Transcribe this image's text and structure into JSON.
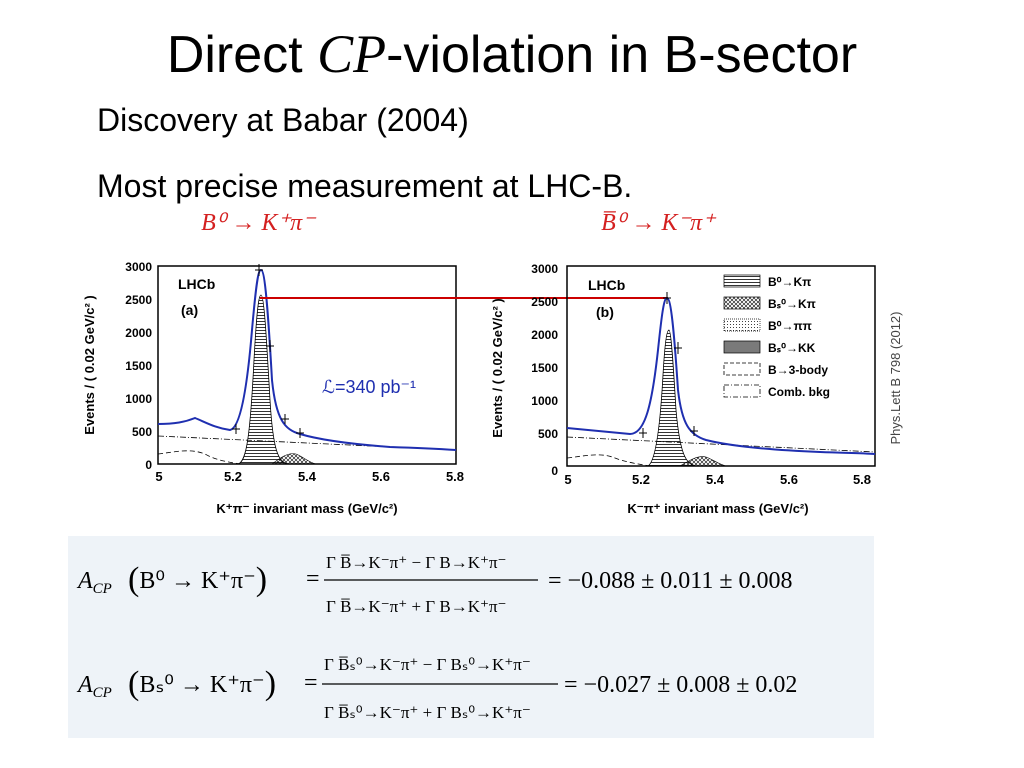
{
  "slide": {
    "title_pre": "Direct ",
    "title_cp": "CP",
    "title_post": "-violation in B-sector",
    "bullets": [
      "Discovery at Babar (2004)",
      "Most precise measurement at LHC-B."
    ]
  },
  "plots": {
    "left": {
      "decay_label": "B⁰ → K⁺π⁻",
      "experiment": "LHCb",
      "panel": "(a)",
      "ylabel": "Events / ( 0.02 GeV/c² )",
      "xlabel": "K⁺π⁻ invariant mass (GeV/c²)",
      "lumi": "ℒ=340 pb⁻¹",
      "xticks": [
        "5",
        "5.2",
        "5.4",
        "5.6",
        "5.8"
      ],
      "yticks": [
        "0",
        "500",
        "1000",
        "1500",
        "2000",
        "2500",
        "3000"
      ]
    },
    "right": {
      "decay_label": "B̅⁰ → K⁻π⁺",
      "experiment": "LHCb",
      "panel": "(b)",
      "ylabel": "Events / ( 0.02 GeV/c² )",
      "xlabel": "K⁻π⁺ invariant mass (GeV/c²)",
      "xticks": [
        "5",
        "5.2",
        "5.4",
        "5.6",
        "5.8"
      ],
      "yticks": [
        "0",
        "500",
        "1000",
        "1500",
        "2000",
        "2500",
        "3000"
      ],
      "legend": [
        "B⁰→Kπ",
        "Bₛ⁰→Kπ",
        "B⁰→ππ",
        "Bₛ⁰→KK",
        "B→3-body",
        "Comb. bkg"
      ]
    },
    "reference": "Phys.Lett B 798 (2012)"
  },
  "formulas": {
    "row1": {
      "lhs": "A",
      "lhs_sub": "CP",
      "arg": "B⁰ → K⁺π⁻",
      "num": "Γ B̅→K⁻π⁺ − Γ B→K⁺π⁻",
      "den": "Γ B̅→K⁻π⁺ + Γ B→K⁺π⁻",
      "result": "= −0.088 ± 0.011 ± 0.008"
    },
    "row2": {
      "lhs": "A",
      "lhs_sub": "CP",
      "arg": "Bₛ⁰ → K⁺π⁻",
      "num": "Γ B̅ₛ⁰→K⁻π⁺ − Γ Bₛ⁰→K⁺π⁻",
      "den": "Γ B̅ₛ⁰→K⁻π⁺ + Γ Bₛ⁰→K⁺π⁻",
      "result": "= −0.027 ± 0.008 ± 0.02"
    }
  },
  "colors": {
    "fit": "#1f2fb0",
    "line": "#cc0000",
    "label": "#d42020",
    "box": "#eef3f8"
  }
}
